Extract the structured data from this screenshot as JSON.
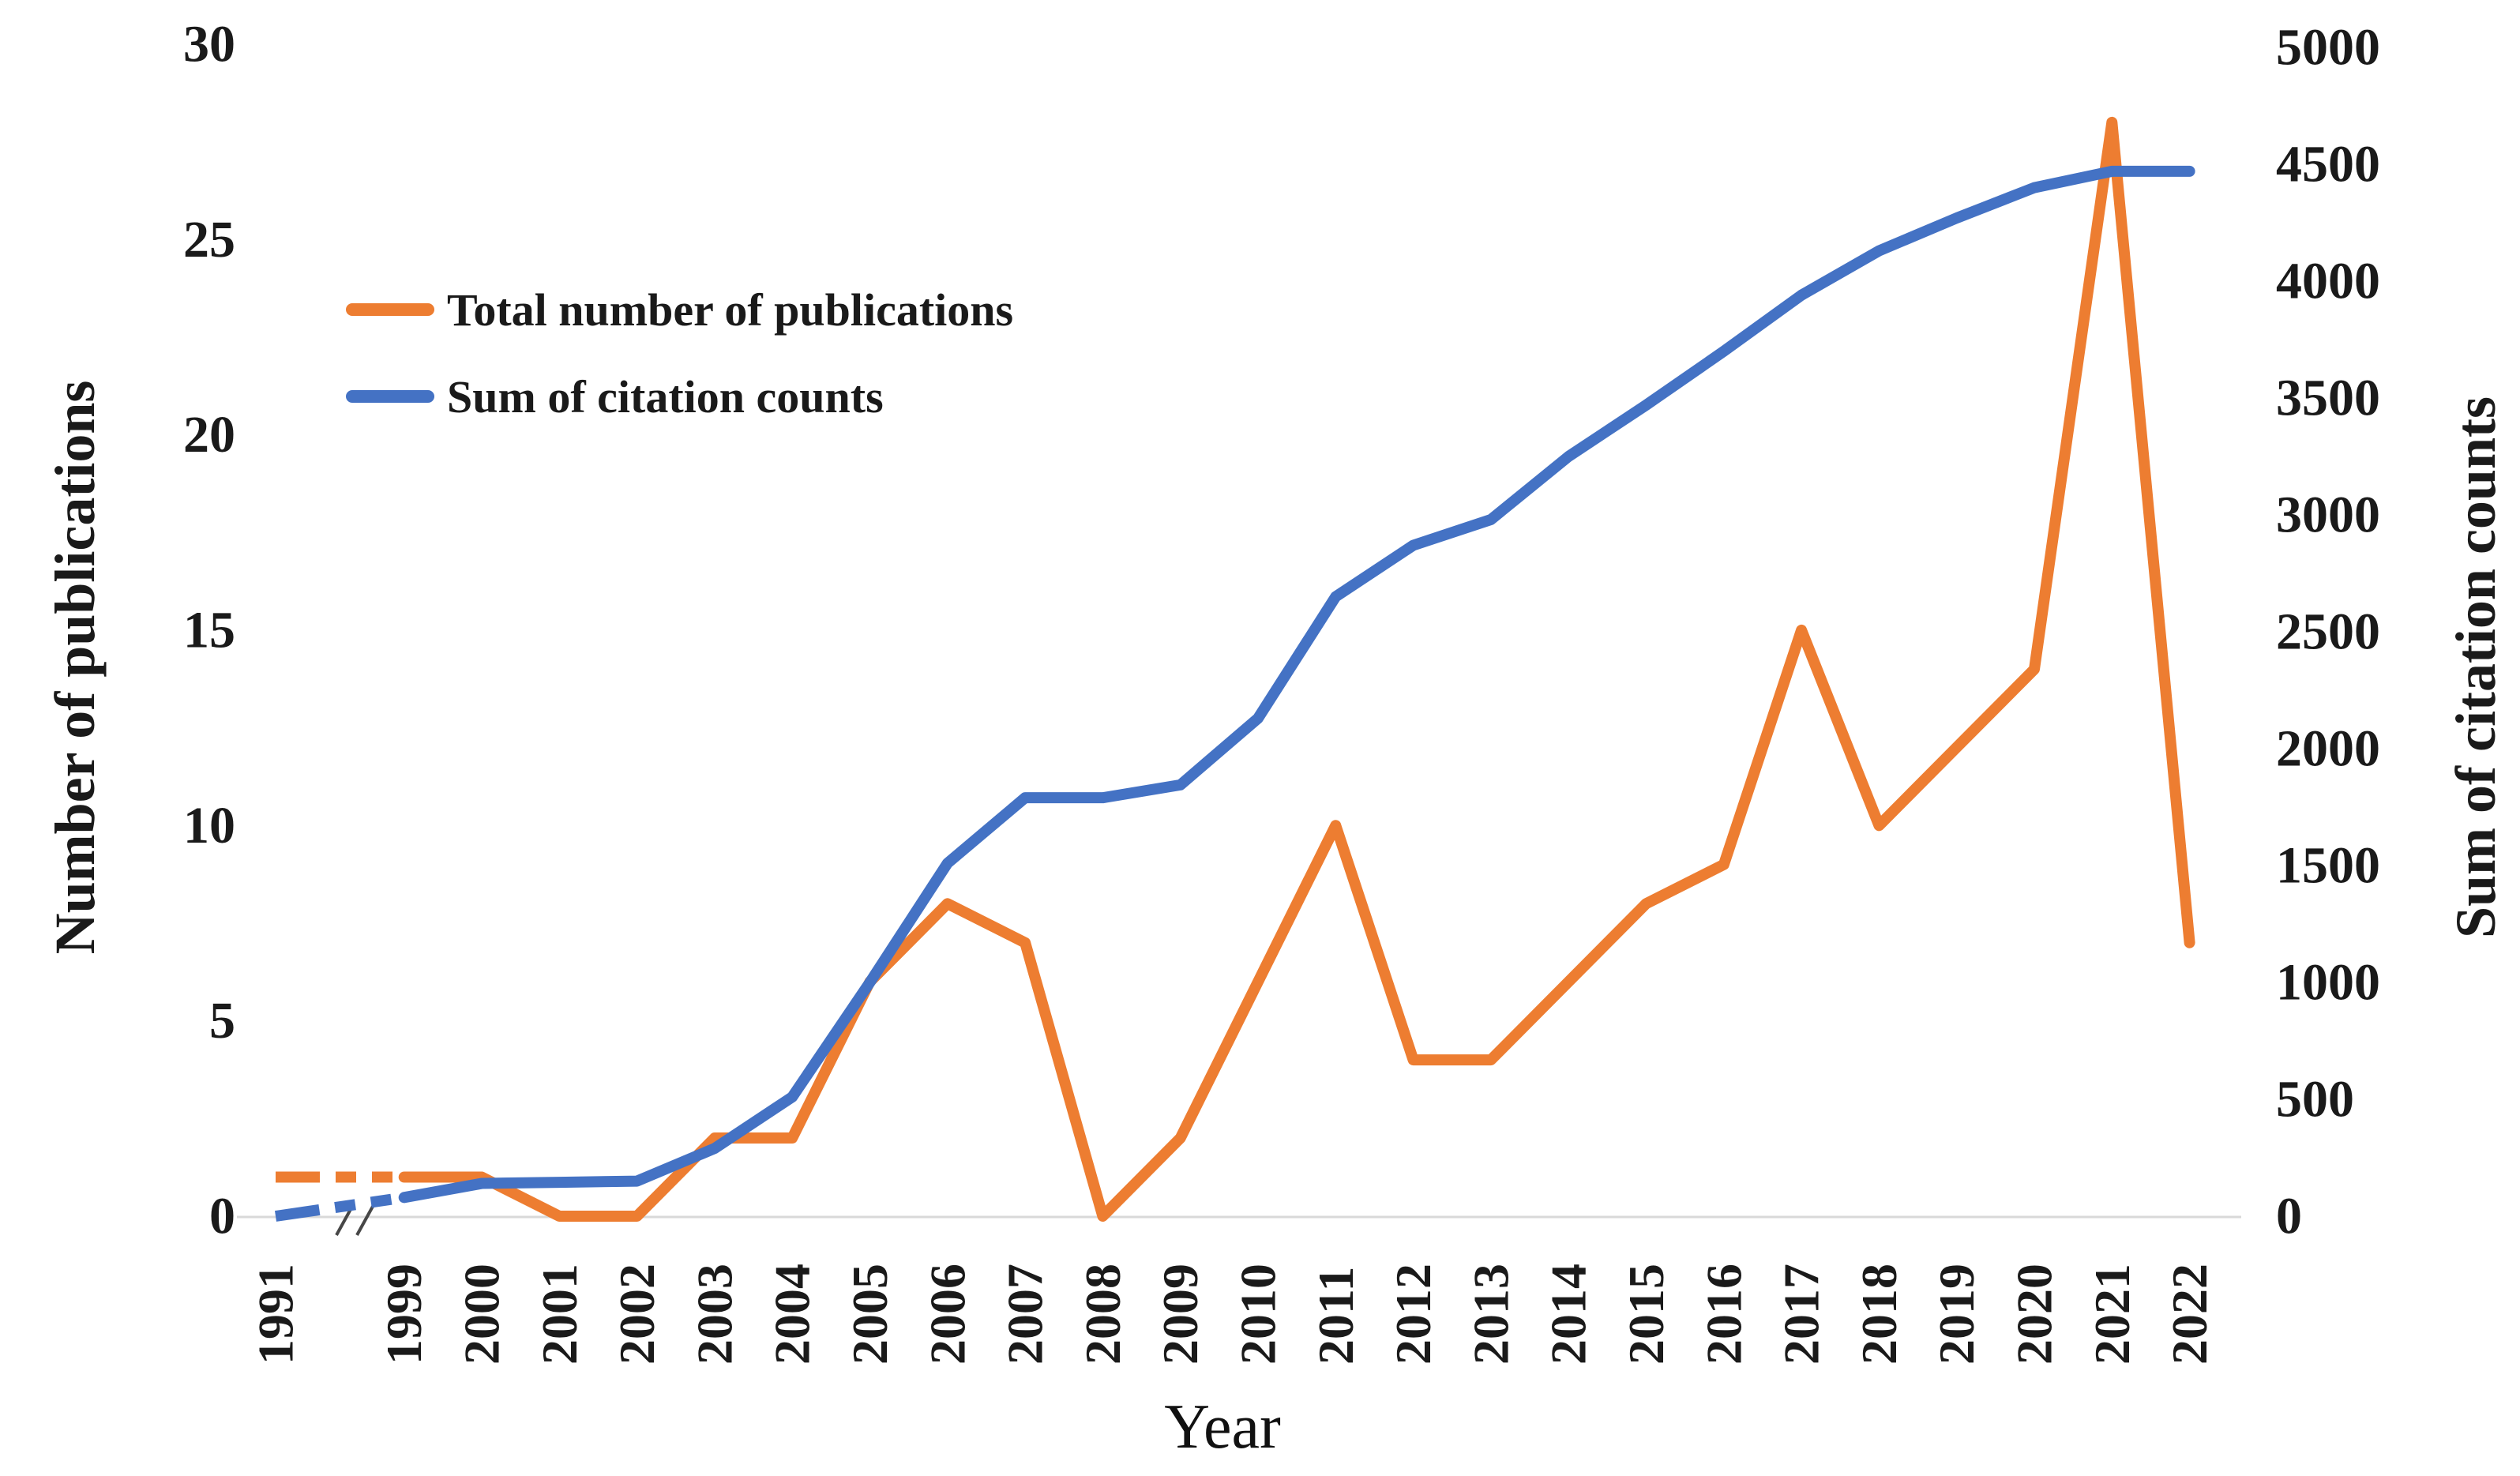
{
  "chart_data": {
    "type": "line",
    "title": "",
    "xlabel": "Year",
    "categories": [
      "1991",
      "1999",
      "2000",
      "2001",
      "2002",
      "2003",
      "2004",
      "2005",
      "2006",
      "2007",
      "2008",
      "2009",
      "2010",
      "2011",
      "2012",
      "2013",
      "2014",
      "2015",
      "2016",
      "2017",
      "2018",
      "2019",
      "2020",
      "2021",
      "2022"
    ],
    "series": [
      {
        "name": "Total number of publications",
        "axis": "left",
        "color": "#ED7D31",
        "values": [
          1,
          1,
          1,
          0,
          0,
          2,
          2,
          6,
          8,
          7,
          0,
          2,
          6,
          10,
          4,
          4,
          6,
          8,
          9,
          15,
          10,
          12,
          14,
          28,
          7
        ]
      },
      {
        "name": "Sum of citation counts",
        "axis": "right",
        "color": "#4472C4",
        "values": [
          0,
          80,
          140,
          145,
          150,
          290,
          510,
          1000,
          1510,
          1790,
          1790,
          1845,
          2130,
          2650,
          2870,
          2980,
          3250,
          3470,
          3700,
          3940,
          4130,
          4270,
          4400,
          4470,
          4470
        ]
      }
    ],
    "left_axis": {
      "label": "Number of publications",
      "ticks": [
        0,
        5,
        10,
        15,
        20,
        25,
        30
      ],
      "range": [
        0,
        30
      ]
    },
    "right_axis": {
      "label": "Sum of citation counts",
      "ticks": [
        0,
        500,
        1000,
        1500,
        2000,
        2500,
        3000,
        3500,
        4000,
        4500,
        5000
      ],
      "range": [
        0,
        5000
      ]
    },
    "axis_break": {
      "between": [
        "1991",
        "1999"
      ],
      "style": "dashed line segment with double slash marks on baseline"
    },
    "legend_position": "top-left",
    "grid": "off"
  },
  "legend": {
    "item1": "Total number of publications",
    "item2": "Sum of citation counts"
  },
  "axis_titles": {
    "left": "Number of publications",
    "right": "Sum of citation counts",
    "x": "Year"
  },
  "colors": {
    "publications_line": "#ED7D31",
    "citations_line": "#4472C4",
    "axis_line": "#D9D9D9",
    "break_mark": "#474747",
    "text": "#1a1a1a"
  }
}
